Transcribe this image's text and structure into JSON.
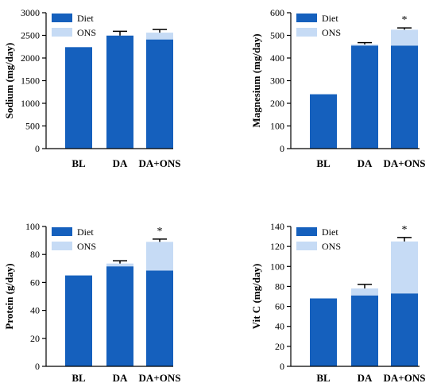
{
  "figure": {
    "colors": {
      "diet": "#1560bd",
      "ons": "#c6dbf5",
      "axis": "#000000",
      "error": "#000000"
    }
  },
  "chart_data": [
    {
      "type": "bar",
      "stacked": true,
      "categories": [
        "BL",
        "DA",
        "DA+ONS"
      ],
      "series": [
        {
          "name": "Diet",
          "values": [
            2240,
            2495,
            2410
          ]
        },
        {
          "name": "ONS",
          "values": [
            0,
            0,
            150
          ]
        }
      ],
      "error_totals": [
        null,
        2590,
        2630
      ],
      "significance": [
        "",
        "",
        ""
      ],
      "ylabel": "Sodium (mg/day)",
      "ylim": [
        0,
        3000
      ],
      "yticks": [
        0,
        500,
        1000,
        1500,
        2000,
        2500,
        3000
      ],
      "legend": "top-left"
    },
    {
      "type": "bar",
      "stacked": true,
      "categories": [
        "BL",
        "DA",
        "DA+ONS"
      ],
      "series": [
        {
          "name": "Diet",
          "values": [
            240,
            455,
            455
          ]
        },
        {
          "name": "ONS",
          "values": [
            0,
            5,
            70
          ]
        }
      ],
      "error_totals": [
        null,
        468,
        533
      ],
      "significance": [
        "",
        "",
        "*"
      ],
      "ylabel": "Magnesium (mg/day)",
      "ylim": [
        0,
        600
      ],
      "yticks": [
        0,
        100,
        200,
        300,
        400,
        500,
        600
      ],
      "legend": "top-left"
    },
    {
      "type": "bar",
      "stacked": true,
      "categories": [
        "BL",
        "DA",
        "DA+ONS"
      ],
      "series": [
        {
          "name": "Diet",
          "values": [
            65,
            71.5,
            68.5
          ]
        },
        {
          "name": "ONS",
          "values": [
            0,
            2,
            20.5
          ]
        }
      ],
      "error_totals": [
        null,
        75.5,
        91
      ],
      "significance": [
        "",
        "",
        "*"
      ],
      "ylabel": "Protein (g/day)",
      "ylim": [
        0,
        100
      ],
      "yticks": [
        0,
        20,
        40,
        60,
        80,
        100
      ],
      "legend": "top-left"
    },
    {
      "type": "bar",
      "stacked": true,
      "categories": [
        "BL",
        "DA",
        "DA+ONS"
      ],
      "series": [
        {
          "name": "Diet",
          "values": [
            68,
            71,
            73
          ]
        },
        {
          "name": "ONS",
          "values": [
            0,
            7,
            52
          ]
        }
      ],
      "error_totals": [
        null,
        82,
        129
      ],
      "significance": [
        "",
        "",
        "*"
      ],
      "ylabel": "Vit C (mg/day)",
      "ylim": [
        0,
        140
      ],
      "yticks": [
        0,
        20,
        40,
        60,
        80,
        100,
        120,
        140
      ],
      "legend": "top-left"
    }
  ]
}
